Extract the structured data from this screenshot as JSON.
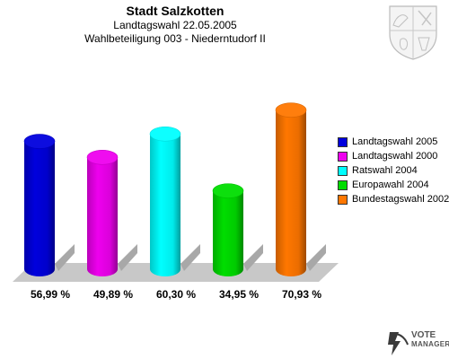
{
  "chart_data": {
    "type": "bar",
    "title": "Stadt Salzkotten",
    "subtitle": "Landtagswahl 22.05.2005",
    "subtitle2": "Wahlbeteiligung 003 - Niederntudorf II",
    "categories": [
      "Landtagswahl 2005",
      "Landtagswahl 2000",
      "Ratswahl 2004",
      "Europawahl 2004",
      "Bundestagswahl 2002"
    ],
    "values": [
      56.99,
      49.89,
      60.3,
      34.95,
      70.93
    ],
    "value_labels": [
      "56,99 %",
      "49,89 %",
      "60,30 %",
      "34,95 %",
      "70,93 %"
    ],
    "colors": [
      "#0000dd",
      "#ee00ee",
      "#00ffff",
      "#00dd00",
      "#ff7700"
    ],
    "ylim": [
      0,
      100
    ],
    "legend_position": "right",
    "grid": false
  },
  "branding": {
    "line1": "VOTE",
    "line2": "MANAGER"
  }
}
